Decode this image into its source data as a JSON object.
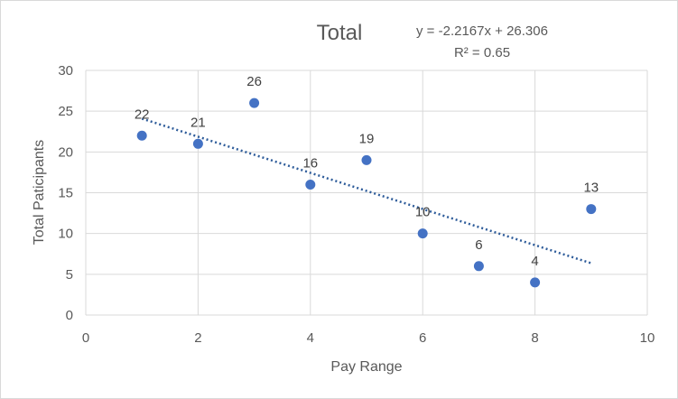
{
  "chart_data": {
    "type": "scatter",
    "title": "Total",
    "xlabel": "Pay Range",
    "ylabel": "Total Paticipants",
    "xlim": [
      0,
      10
    ],
    "ylim": [
      0,
      30
    ],
    "xticks": [
      0,
      2,
      4,
      6,
      8,
      10
    ],
    "yticks": [
      0,
      5,
      10,
      15,
      20,
      25,
      30
    ],
    "grid": true,
    "legend": "none",
    "colors": {
      "points": "#4472c4",
      "trendline": "#2e5c9a"
    },
    "series": [
      {
        "x": [
          1,
          2,
          3,
          4,
          5,
          6,
          7,
          8,
          9
        ],
        "y": [
          22,
          21,
          26,
          16,
          19,
          10,
          6,
          4,
          13
        ],
        "labels": [
          "22",
          "21",
          "26",
          "16",
          "19",
          "10",
          "6",
          "4",
          "13"
        ]
      }
    ],
    "trendline": {
      "type": "linear",
      "slope": -2.2167,
      "intercept": 26.306,
      "x_range": [
        1,
        9
      ],
      "equation": "y = -2.2167x + 26.306",
      "r_squared": "R² = 0.65"
    }
  }
}
